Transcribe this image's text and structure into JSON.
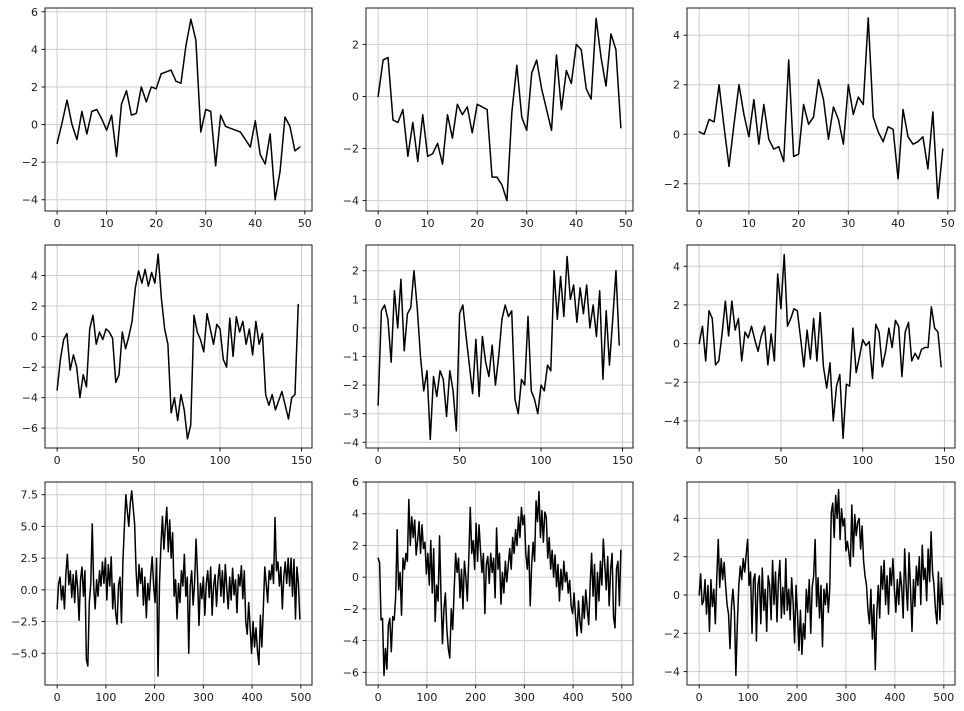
{
  "figure": {
    "background": "#ffffff",
    "line_color": "#000000",
    "grid_color": "#cdcdcd",
    "spine_color": "#1a1a1a",
    "tick_color": "#1a1a1a",
    "tick_label_color": "#1a1a1a"
  },
  "chart_data": [
    {
      "type": "line",
      "row": 1,
      "col": 1,
      "title": "",
      "xlabel": "",
      "ylabel": "",
      "grid": true,
      "legend": null,
      "x_start": 0,
      "x_step": 1,
      "xlim": [
        -2.45,
        51.45
      ],
      "ylim": [
        -4.6,
        6.2
      ],
      "xtick_vals": [
        0,
        10,
        20,
        30,
        40,
        50
      ],
      "xtick_labels": [
        "0",
        "10",
        "20",
        "30",
        "40",
        "50"
      ],
      "ytick_vals": [
        -4,
        -2,
        0,
        2,
        4,
        6
      ],
      "ytick_labels": [
        "−4",
        "−2",
        "0",
        "2",
        "4",
        "6"
      ],
      "values": [
        -1.0,
        0.1,
        1.3,
        0.0,
        -0.8,
        0.7,
        -0.5,
        0.7,
        0.8,
        0.3,
        -0.3,
        0.5,
        -1.7,
        1.1,
        1.8,
        0.5,
        0.6,
        2.0,
        1.2,
        2.0,
        1.9,
        2.7,
        2.8,
        2.9,
        2.3,
        2.2,
        4.2,
        5.6,
        4.5,
        -0.4,
        0.8,
        0.7,
        -2.2,
        0.5,
        -0.1,
        -0.2,
        -0.3,
        -0.4,
        -0.8,
        -1.2,
        0.2,
        -1.6,
        -2.1,
        -0.5,
        -4.0,
        -2.5,
        0.4,
        -0.1,
        -1.4,
        -1.2
      ]
    },
    {
      "type": "line",
      "row": 1,
      "col": 2,
      "title": "",
      "xlabel": "",
      "ylabel": "",
      "grid": true,
      "legend": null,
      "x_start": 0,
      "x_step": 1,
      "xlim": [
        -2.45,
        51.45
      ],
      "ylim": [
        -4.4,
        3.4
      ],
      "xtick_vals": [
        0,
        10,
        20,
        30,
        40,
        50
      ],
      "xtick_labels": [
        "0",
        "10",
        "20",
        "30",
        "40",
        "50"
      ],
      "ytick_vals": [
        -4,
        -2,
        0,
        2
      ],
      "ytick_labels": [
        "−4",
        "−2",
        "0",
        "2"
      ],
      "values": [
        0.0,
        1.4,
        1.5,
        -0.9,
        -1.0,
        -0.5,
        -2.3,
        -1.0,
        -2.5,
        -0.7,
        -2.3,
        -2.2,
        -1.8,
        -2.6,
        -0.7,
        -1.6,
        -0.3,
        -0.7,
        -0.4,
        -1.4,
        -0.3,
        -0.4,
        -0.5,
        -3.1,
        -3.1,
        -3.4,
        -4.0,
        -0.6,
        1.2,
        -0.8,
        -1.3,
        0.9,
        1.4,
        0.3,
        -0.5,
        -1.3,
        1.6,
        -0.5,
        1.0,
        0.5,
        2.0,
        1.8,
        0.3,
        -0.1,
        3.0,
        1.5,
        0.4,
        2.4,
        1.8,
        -1.2
      ]
    },
    {
      "type": "line",
      "row": 1,
      "col": 3,
      "title": "",
      "xlabel": "",
      "ylabel": "",
      "grid": true,
      "legend": null,
      "x_start": 0,
      "x_step": 1,
      "xlim": [
        -2.45,
        51.45
      ],
      "ylim": [
        -3.1,
        5.1
      ],
      "xtick_vals": [
        0,
        10,
        20,
        30,
        40,
        50
      ],
      "xtick_labels": [
        "0",
        "10",
        "20",
        "30",
        "40",
        "50"
      ],
      "ytick_vals": [
        -2,
        0,
        2,
        4
      ],
      "ytick_labels": [
        "−2",
        "0",
        "2",
        "4"
      ],
      "values": [
        0.1,
        0.0,
        0.6,
        0.5,
        2.0,
        0.3,
        -1.3,
        0.4,
        2.0,
        0.8,
        -0.1,
        1.4,
        -0.4,
        1.2,
        -0.2,
        -0.6,
        -0.5,
        -1.1,
        3.0,
        -0.9,
        -0.8,
        1.2,
        0.4,
        0.7,
        2.2,
        1.4,
        -0.2,
        1.1,
        0.6,
        -0.4,
        2.0,
        0.8,
        1.5,
        1.2,
        4.7,
        0.7,
        0.1,
        -0.3,
        0.3,
        0.2,
        -1.8,
        1.0,
        -0.1,
        -0.4,
        -0.3,
        -0.1,
        -1.4,
        0.9,
        -2.6,
        -0.6
      ]
    },
    {
      "type": "line",
      "row": 2,
      "col": 1,
      "title": "",
      "xlabel": "",
      "ylabel": "",
      "grid": true,
      "legend": null,
      "x_start": 0,
      "x_step": 2,
      "xlim": [
        -7.45,
        156.45
      ],
      "ylim": [
        -7.3,
        6.0
      ],
      "xtick_vals": [
        0,
        50,
        100,
        150
      ],
      "xtick_labels": [
        "0",
        "50",
        "100",
        "150"
      ],
      "ytick_vals": [
        -6,
        -4,
        -2,
        0,
        2,
        4
      ],
      "ytick_labels": [
        "−6",
        "−4",
        "−2",
        "0",
        "2",
        "4"
      ],
      "values": [
        -3.5,
        -1.5,
        -0.2,
        0.2,
        -2.2,
        -1.2,
        -2.0,
        -4.0,
        -2.5,
        -3.3,
        0.5,
        1.4,
        -0.5,
        0.3,
        -0.2,
        0.5,
        0.3,
        -0.1,
        -3.0,
        -2.5,
        0.3,
        -0.8,
        0.0,
        1.0,
        3.2,
        4.3,
        3.5,
        4.4,
        3.3,
        4.2,
        3.5,
        5.4,
        2.5,
        0.5,
        -0.5,
        -5.0,
        -4.0,
        -5.5,
        -3.8,
        -4.8,
        -6.7,
        -5.8,
        1.4,
        0.3,
        -0.2,
        -1.0,
        1.5,
        0.5,
        -0.5,
        0.8,
        0.5,
        -1.5,
        -2.0,
        1.2,
        -1.3,
        1.3,
        0.3,
        1.0,
        -0.5,
        0.5,
        -1.2,
        1.0,
        -0.5,
        0.2,
        -3.8,
        -4.5,
        -3.8,
        -4.8,
        -4.2,
        -3.6,
        -4.5,
        -5.4,
        -4.0,
        -3.8,
        2.1
      ]
    },
    {
      "type": "line",
      "row": 2,
      "col": 2,
      "title": "",
      "xlabel": "",
      "ylabel": "",
      "grid": true,
      "legend": null,
      "x_start": 0,
      "x_step": 2,
      "xlim": [
        -7.45,
        156.45
      ],
      "ylim": [
        -4.2,
        2.9
      ],
      "xtick_vals": [
        0,
        50,
        100,
        150
      ],
      "xtick_labels": [
        "0",
        "50",
        "100",
        "150"
      ],
      "ytick_vals": [
        -4,
        -3,
        -2,
        -1,
        0,
        1,
        2
      ],
      "ytick_labels": [
        "−4",
        "−3",
        "−2",
        "−1",
        "0",
        "1",
        "2"
      ],
      "values": [
        -2.7,
        0.6,
        0.8,
        0.3,
        -1.2,
        1.3,
        0.0,
        1.7,
        -0.8,
        0.5,
        0.7,
        2.0,
        0.7,
        -1.0,
        -2.2,
        -1.5,
        -3.9,
        -1.7,
        -2.4,
        -1.5,
        -1.8,
        -3.1,
        -1.5,
        -2.2,
        -3.6,
        0.5,
        0.8,
        -0.3,
        -1.3,
        -2.3,
        -0.4,
        -2.4,
        -0.3,
        -1.2,
        -1.7,
        -0.6,
        -2.0,
        -1.0,
        0.3,
        0.8,
        0.4,
        0.6,
        -2.5,
        -3.0,
        -1.8,
        -2.0,
        0.4,
        -2.2,
        -2.5,
        -3.0,
        -2.0,
        -2.2,
        -1.3,
        -1.5,
        2.0,
        0.3,
        1.8,
        0.4,
        2.5,
        1.0,
        1.5,
        0.2,
        1.4,
        0.5,
        1.5,
        0.0,
        0.8,
        -0.3,
        1.3,
        -1.8,
        0.6,
        -1.3,
        0.3,
        2.0,
        -0.6
      ]
    },
    {
      "type": "line",
      "row": 2,
      "col": 3,
      "title": "",
      "xlabel": "",
      "ylabel": "",
      "grid": true,
      "legend": null,
      "x_start": 0,
      "x_step": 2,
      "xlim": [
        -7.45,
        156.45
      ],
      "ylim": [
        -5.4,
        5.1
      ],
      "xtick_vals": [
        0,
        50,
        100,
        150
      ],
      "xtick_labels": [
        "0",
        "50",
        "100",
        "150"
      ],
      "ytick_vals": [
        -4,
        -2,
        0,
        2,
        4
      ],
      "ytick_labels": [
        "−4",
        "−2",
        "0",
        "2",
        "4"
      ],
      "values": [
        0.0,
        0.9,
        -0.9,
        1.7,
        1.3,
        -1.1,
        -0.9,
        0.5,
        2.2,
        0.4,
        2.2,
        0.7,
        1.3,
        -0.9,
        0.6,
        0.3,
        0.9,
        0.2,
        -0.4,
        0.4,
        0.9,
        -1.1,
        0.5,
        -0.9,
        3.6,
        1.8,
        4.6,
        0.9,
        1.3,
        1.8,
        1.7,
        0.3,
        -1.2,
        0.7,
        -0.8,
        1.3,
        -0.9,
        1.6,
        -1.2,
        -2.3,
        -1.0,
        -4.0,
        -2.2,
        -1.6,
        -4.9,
        -2.1,
        -2.2,
        0.8,
        -1.5,
        -0.7,
        0.2,
        -0.1,
        0.1,
        -1.8,
        1.0,
        0.6,
        -1.2,
        -0.4,
        0.8,
        -0.2,
        1.2,
        0.9,
        -1.7,
        0.6,
        1.1,
        -0.9,
        -0.5,
        -0.8,
        -0.3,
        -0.2,
        -0.2,
        1.9,
        0.8,
        0.6,
        -1.2
      ]
    },
    {
      "type": "line",
      "row": 3,
      "col": 1,
      "title": "",
      "xlabel": "",
      "ylabel": "",
      "grid": true,
      "legend": null,
      "x_start": 0,
      "x_step": 3,
      "xlim": [
        -24.9,
        522.9
      ],
      "ylim": [
        -7.5,
        8.5
      ],
      "xtick_vals": [
        0,
        100,
        200,
        300,
        400,
        500
      ],
      "xtick_labels": [
        "0",
        "100",
        "200",
        "300",
        "400",
        "500"
      ],
      "ytick_vals": [
        -5.0,
        -2.5,
        0.0,
        2.5,
        5.0,
        7.5
      ],
      "ytick_labels": [
        "−5.0",
        "−2.5",
        "0.0",
        "2.5",
        "5.0",
        "7.5"
      ],
      "values": [
        -1.5,
        0.5,
        1.0,
        -0.8,
        0.3,
        -1.5,
        1.3,
        2.8,
        0.4,
        1.5,
        -0.6,
        1.2,
        -1.0,
        1.5,
        0.2,
        -2.4,
        0.8,
        1.8,
        -0.5,
        1.5,
        -5.5,
        -6.0,
        -1.0,
        0.5,
        5.2,
        0.3,
        -1.5,
        0.8,
        -0.5,
        1.5,
        0.3,
        2.2,
        0.5,
        2.5,
        -0.8,
        2.0,
        0.3,
        2.6,
        -1.5,
        0.5,
        -1.8,
        -2.7,
        0.4,
        1.0,
        -2.6,
        2.3,
        5.0,
        7.5,
        6.2,
        5.0,
        6.8,
        7.8,
        6.5,
        5.2,
        1.5,
        -0.5,
        2.0,
        0.5,
        1.7,
        -1.2,
        1.0,
        -2.2,
        0.5,
        -0.8,
        1.2,
        2.6,
        0.3,
        -1.0,
        2.5,
        -6.8,
        0.5,
        3.5,
        5.8,
        3.2,
        5.0,
        6.5,
        3.0,
        5.5,
        2.5,
        4.5,
        -0.5,
        0.8,
        -2.3,
        0.5,
        -1.0,
        1.5,
        0.3,
        2.8,
        -0.5,
        1.0,
        -5.0,
        0.3,
        1.5,
        -1.2,
        0.5,
        4.0,
        1.2,
        -2.8,
        0.5,
        -0.7,
        1.0,
        -2.0,
        0.5,
        1.5,
        -0.6,
        1.8,
        -2.0,
        0.3,
        1.2,
        -1.3,
        0.8,
        2.0,
        -0.5,
        1.5,
        -1.0,
        2.0,
        0.2,
        -1.5,
        1.0,
        -0.8,
        1.7,
        -0.4,
        0.8,
        -1.8,
        1.2,
        0.3,
        1.9,
        -0.7,
        1.5,
        -2.5,
        -3.5,
        -1.0,
        -3.0,
        -5.0,
        -2.5,
        -4.5,
        -3.0,
        -4.8,
        -5.9,
        -2.0,
        -4.5,
        -1.5,
        1.8,
        0.5,
        -1.0,
        1.5,
        0.8,
        2.0,
        0.5,
        5.7,
        1.5,
        2.2,
        0.3,
        1.8,
        -1.5,
        1.0,
        2.2,
        0.5,
        2.5,
        0.3,
        2.5,
        -0.5,
        2.4,
        -2.3,
        1.8,
        0.5,
        -2.3
      ]
    },
    {
      "type": "line",
      "row": 3,
      "col": 2,
      "title": "",
      "xlabel": "",
      "ylabel": "",
      "grid": true,
      "legend": null,
      "x_start": 0,
      "x_step": 3,
      "xlim": [
        -24.9,
        522.9
      ],
      "ylim": [
        -6.8,
        6.0
      ],
      "xtick_vals": [
        0,
        100,
        200,
        300,
        400,
        500
      ],
      "xtick_labels": [
        "0",
        "100",
        "200",
        "300",
        "400",
        "500"
      ],
      "ytick_vals": [
        -6,
        -4,
        -2,
        0,
        2,
        4,
        6
      ],
      "ytick_labels": [
        "−6",
        "−4",
        "−2",
        "0",
        "2",
        "4",
        "6"
      ],
      "values": [
        1.2,
        0.9,
        -2.7,
        -2.6,
        -6.2,
        -4.5,
        -5.8,
        -3.0,
        -2.6,
        -4.7,
        -2.5,
        -2.7,
        -1.2,
        3.0,
        -0.8,
        0.3,
        -2.4,
        1.2,
        0.5,
        1.5,
        1.0,
        4.9,
        2.0,
        3.8,
        2.5,
        3.6,
        1.4,
        2.3,
        3.5,
        1.5,
        3.3,
        1.8,
        2.2,
        0.2,
        1.5,
        -0.5,
        2.3,
        -1.0,
        1.8,
        -2.8,
        -0.5,
        -1.5,
        2.6,
        -1.2,
        -4.2,
        -2.0,
        -1.0,
        -3.3,
        -4.5,
        -5.1,
        -2.0,
        -3.3,
        -0.8,
        1.5,
        0.3,
        1.2,
        -1.3,
        0.5,
        -2.0,
        1.0,
        0.0,
        -1.5,
        1.2,
        4.4,
        1.5,
        2.3,
        0.5,
        3.4,
        1.0,
        3.3,
        1.7,
        0.3,
        1.5,
        -2.3,
        0.8,
        1.3,
        -0.4,
        1.5,
        0.3,
        1.2,
        -1.3,
        3.1,
        0.5,
        1.5,
        -1.7,
        0.3,
        -1.0,
        1.0,
        -0.3,
        0.8,
        1.8,
        0.5,
        2.5,
        1.5,
        3.0,
        2.0,
        3.8,
        2.5,
        4.4,
        3.3,
        3.9,
        1.5,
        0.5,
        2.0,
        -1.8,
        0.8,
        2.2,
        1.0,
        4.8,
        3.5,
        5.4,
        2.5,
        4.2,
        2.2,
        4.1,
        3.8,
        1.2,
        2.5,
        0.5,
        1.7,
        0.0,
        1.4,
        -0.6,
        0.8,
        -1.5,
        0.5,
        -0.8,
        1.0,
        -0.3,
        0.3,
        -1.0,
        -0.2,
        -1.8,
        -2.3,
        -1.0,
        -2.5,
        -3.7,
        -1.5,
        -2.8,
        -3.5,
        -1.2,
        -2.6,
        -0.8,
        -2.0,
        -3.0,
        -0.5,
        1.5,
        -1.2,
        0.8,
        -2.7,
        0.3,
        -1.5,
        1.0,
        -0.5,
        2.4,
        0.8,
        -0.8,
        1.3,
        -1.8,
        0.5,
        1.5,
        -2.5,
        -3.2,
        0.5,
        1.0,
        -1.8,
        1.7
      ]
    },
    {
      "type": "line",
      "row": 3,
      "col": 3,
      "title": "",
      "xlabel": "",
      "ylabel": "",
      "grid": true,
      "legend": null,
      "x_start": 0,
      "x_step": 3,
      "xlim": [
        -24.9,
        522.9
      ],
      "ylim": [
        -4.7,
        5.9
      ],
      "xtick_vals": [
        0,
        100,
        200,
        300,
        400,
        500
      ],
      "xtick_labels": [
        "0",
        "100",
        "200",
        "300",
        "400",
        "500"
      ],
      "ytick_vals": [
        -4,
        -2,
        0,
        2,
        4
      ],
      "ytick_labels": [
        "−4",
        "−2",
        "0",
        "2",
        "4"
      ],
      "values": [
        0.0,
        1.1,
        -0.5,
        -0.3,
        0.8,
        -1.0,
        0.5,
        -1.9,
        0.8,
        -0.6,
        0.3,
        -1.5,
        0.9,
        2.9,
        0.4,
        1.9,
        0.8,
        1.7,
        0.5,
        -0.5,
        -1.0,
        -2.8,
        -0.6,
        0.3,
        -0.8,
        -4.2,
        -1.5,
        0.5,
        1.5,
        0.8,
        1.9,
        1.2,
        2.1,
        2.9,
        0.5,
        1.2,
        -2.0,
        0.8,
        1.1,
        -2.4,
        0.5,
        1.0,
        -1.5,
        1.4,
        -0.8,
        0.3,
        -1.9,
        1.0,
        0.5,
        -1.3,
        1.8,
        -0.5,
        1.2,
        -1.4,
        0.8,
        1.8,
        -1.2,
        0.4,
        -1.0,
        1.9,
        -0.8,
        0.3,
        -1.3,
        0.9,
        -0.4,
        -2.5,
        0.5,
        -1.0,
        -2.9,
        -0.8,
        -3.1,
        -1.5,
        -2.3,
        0.3,
        -0.9,
        0.8,
        -2.0,
        0.4,
        1.0,
        2.9,
        -0.6,
        0.9,
        -1.2,
        0.5,
        -2.7,
        0.3,
        -0.5,
        0.6,
        -0.9,
        0.4,
        4.3,
        4.8,
        3.0,
        5.2,
        4.0,
        5.5,
        2.9,
        4.5,
        3.6,
        4.0,
        2.3,
        2.8,
        2.2,
        1.5,
        4.7,
        2.0,
        4.2,
        3.1,
        3.8,
        4.0,
        2.4,
        3.6,
        1.8,
        1.0,
        0.5,
        -0.8,
        -1.5,
        0.3,
        -2.3,
        -0.5,
        -3.9,
        -1.0,
        0.5,
        -1.2,
        1.5,
        0.3,
        1.8,
        -0.5,
        1.0,
        -1.0,
        1.4,
        0.5,
        1.9,
        0.3,
        -0.9,
        0.8,
        -0.5,
        1.2,
        0.4,
        -1.2,
        2.4,
        0.5,
        -0.8,
        2.2,
        0.3,
        -1.9,
        0.8,
        -0.6,
        1.5,
        0.5,
        2.0,
        -0.5,
        2.6,
        0.8,
        1.4,
        -0.3,
        2.4,
        0.7,
        3.3,
        1.2,
        0.5,
        -0.8,
        -1.5,
        1.2,
        -1.3,
        0.9,
        -0.5
      ]
    }
  ]
}
